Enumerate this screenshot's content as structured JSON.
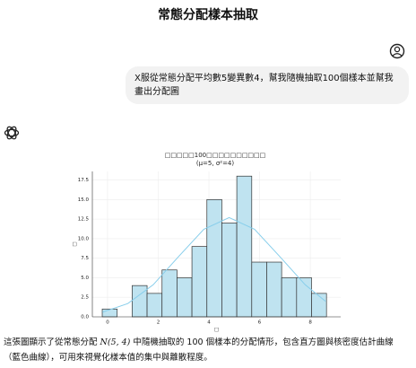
{
  "header": {
    "title": "常態分配樣本抽取"
  },
  "user_message": "X服從常態分配平均數5變異數4，幫我隨機抽取100個樣本並幫我畫出分配圖",
  "chart_data": {
    "type": "histogram",
    "title": "□□□□□100□□□□□□□□□□",
    "subtitle": "(μ=5, σ²=4)",
    "x_label": "□",
    "y_label": "□",
    "bins": [
      -0.21,
      0.38,
      0.97,
      1.56,
      2.15,
      2.74,
      3.33,
      3.92,
      4.51,
      5.1,
      5.69,
      6.28,
      6.87,
      7.46,
      8.05,
      8.64
    ],
    "values": [
      1,
      0,
      4,
      3,
      6,
      5,
      9,
      15,
      12,
      18,
      7,
      7,
      5,
      5,
      3
    ],
    "color": "#bfe3f0",
    "edge_color": "#333333",
    "kde": {
      "color": "#87ceeb",
      "x": [
        -0.2,
        0.8,
        1.8,
        2.8,
        3.8,
        4.8,
        5.8,
        6.8,
        7.8,
        8.6
      ],
      "values": [
        0.6,
        1.7,
        4.1,
        7.7,
        11.2,
        12.7,
        11.2,
        7.7,
        4.1,
        2.0
      ]
    },
    "xlim": [
      -0.6,
      9.2
    ],
    "ylim": [
      0,
      18.6
    ],
    "xticks": [
      0,
      2,
      4,
      6,
      8
    ],
    "yticks": [
      {
        "value": 0,
        "label": "0.0"
      },
      {
        "value": 2.5,
        "label": "2.5"
      },
      {
        "value": 5,
        "label": "5.0"
      },
      {
        "value": 7.5,
        "label": "7.5"
      },
      {
        "value": 10,
        "label": "10.0"
      },
      {
        "value": 12.5,
        "label": "12.5"
      },
      {
        "value": 15,
        "label": "15.0"
      },
      {
        "value": 17.5,
        "label": "17.5"
      }
    ],
    "grid": true
  },
  "response": {
    "text_before": "這張圖顯示了從常態分配 ",
    "math": "N(5, 4)",
    "text_after": " 中隨機抽取的 100 個樣本的分配情形，包含直方圖與核密度估計曲線（藍色曲線），可用來視覺化樣本值的集中與離散程度。"
  }
}
